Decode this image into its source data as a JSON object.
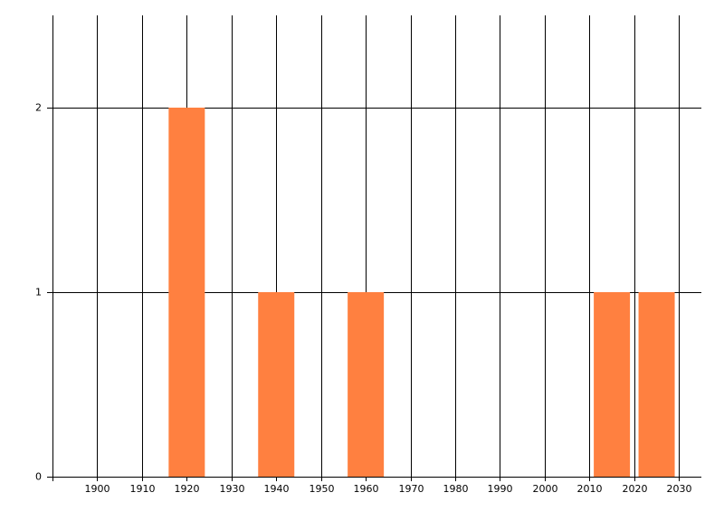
{
  "chart_data": {
    "type": "bar",
    "x": [
      1920,
      1940,
      1960,
      2015,
      2025
    ],
    "values": [
      2,
      1,
      1,
      1,
      1
    ],
    "color": "#ff8040",
    "xlim": [
      1890,
      2035
    ],
    "xticks": [
      1900,
      1910,
      1920,
      1930,
      1940,
      1950,
      1960,
      1970,
      1980,
      1990,
      2000,
      2010,
      2020,
      2030
    ],
    "ylim": [
      0,
      2.5
    ],
    "yticks": [
      0,
      1,
      2
    ],
    "grid": true
  }
}
